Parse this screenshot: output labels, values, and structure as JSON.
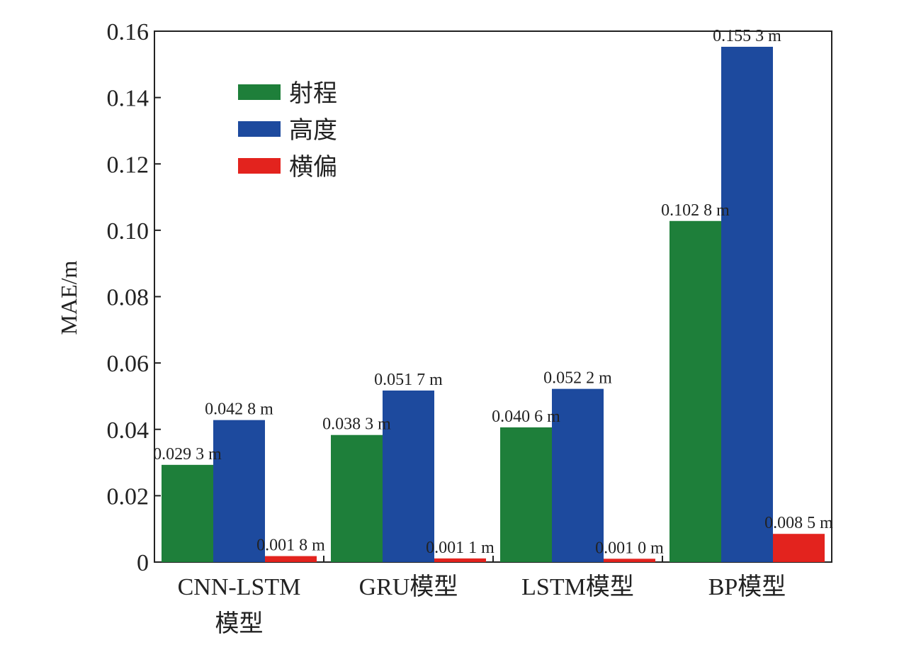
{
  "chart_data": {
    "type": "bar",
    "title": "",
    "xlabel": "",
    "ylabel": "MAE/m",
    "ylim": [
      0,
      0.16
    ],
    "yticks": [
      {
        "value": 0,
        "label": "0"
      },
      {
        "value": 0.02,
        "label": "0.02"
      },
      {
        "value": 0.04,
        "label": "0.04"
      },
      {
        "value": 0.06,
        "label": "0.06"
      },
      {
        "value": 0.08,
        "label": "0.08"
      },
      {
        "value": 0.1,
        "label": "0.10"
      },
      {
        "value": 0.12,
        "label": "0.12"
      },
      {
        "value": 0.14,
        "label": "0.14"
      },
      {
        "value": 0.16,
        "label": "0.16"
      }
    ],
    "categories": [
      [
        "CNN-LSTM",
        "模型"
      ],
      [
        "GRU模型"
      ],
      [
        "LSTM模型"
      ],
      [
        "BP模型"
      ]
    ],
    "series": [
      {
        "name": "射程",
        "color": "#1e7f3a",
        "values": [
          0.0293,
          0.0383,
          0.0406,
          0.1028
        ],
        "labels": [
          "0.029 3 m",
          "0.038 3 m",
          "0.040 6 m",
          "0.102 8 m"
        ]
      },
      {
        "name": "高度",
        "color": "#1d4a9e",
        "values": [
          0.0428,
          0.0517,
          0.0522,
          0.1553
        ],
        "labels": [
          "0.042 8 m",
          "0.051 7 m",
          "0.052 2 m",
          "0.155 3 m"
        ]
      },
      {
        "name": "横偏",
        "color": "#e3231e",
        "values": [
          0.0018,
          0.0011,
          0.001,
          0.0085
        ],
        "labels": [
          "0.001 8 m",
          "0.001 1 m",
          "0.001 0 m",
          "0.008 5 m"
        ]
      }
    ],
    "legend_position": "top-left",
    "grid": false
  }
}
